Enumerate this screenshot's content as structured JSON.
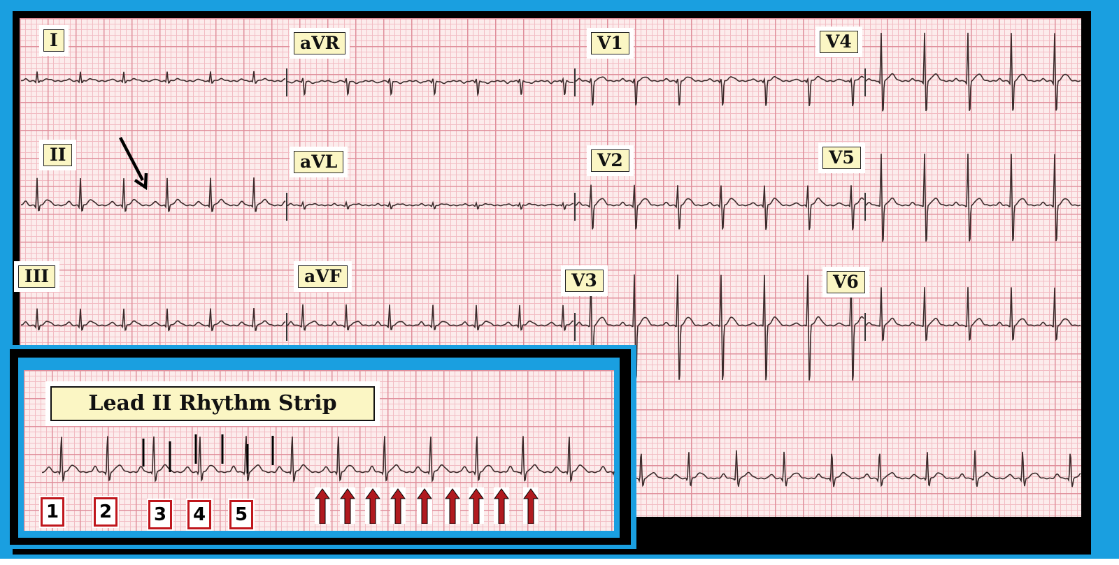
{
  "leads": {
    "I": "I",
    "aVR": "aVR",
    "V1": "V1",
    "V4": "V4",
    "II": "II",
    "aVL": "aVL",
    "V2": "V2",
    "V5": "V5",
    "III": "III",
    "aVF": "aVF",
    "V3": "V3",
    "V6": "V6"
  },
  "rhythm_strip": {
    "title": "Lead II Rhythm Strip",
    "numbers": [
      "1",
      "2",
      "3",
      "4",
      "5"
    ],
    "arrow_count": 9
  },
  "colors": {
    "frame_blue": "#1a9fe0",
    "label_fill": "#fbf6c4",
    "arrow_red": "#b01a1f",
    "number_border": "#c0161c"
  }
}
